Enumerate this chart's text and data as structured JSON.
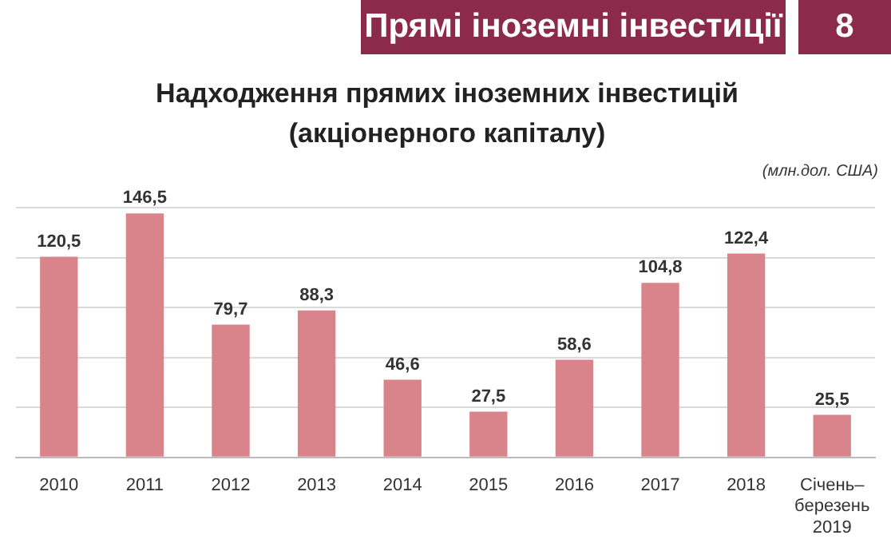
{
  "chart_data": {
    "type": "bar",
    "title": "Надходження прямих іноземних інвестицій (акціонерного капіталу)",
    "annotations": [
      "Прямі іноземні інвестиції",
      "8",
      "(млн.дол. США)"
    ],
    "categories": [
      "2010",
      "2011",
      "2012",
      "2013",
      "2014",
      "2015",
      "2016",
      "2017",
      "2018",
      "Січень–березень 2019"
    ],
    "values": [
      120.5,
      146.5,
      79.7,
      88.3,
      46.6,
      27.5,
      58.6,
      104.8,
      122.4,
      25.5
    ],
    "value_labels": [
      "120,5",
      "146,5",
      "79,7",
      "88,3",
      "46,6",
      "27,5",
      "58,6",
      "104,8",
      "122,4",
      "25,5"
    ],
    "color": "#d9838a",
    "ylim": [
      0,
      150
    ],
    "yticks": [
      {
        "value": 0,
        "label": null
      },
      {
        "value": 30,
        "label": null
      },
      {
        "value": 60,
        "label": null
      },
      {
        "value": 90,
        "label": null
      },
      {
        "value": 120,
        "label": null
      },
      {
        "value": 150,
        "label": null
      }
    ],
    "grid": "y",
    "tick_labels": "x"
  }
}
